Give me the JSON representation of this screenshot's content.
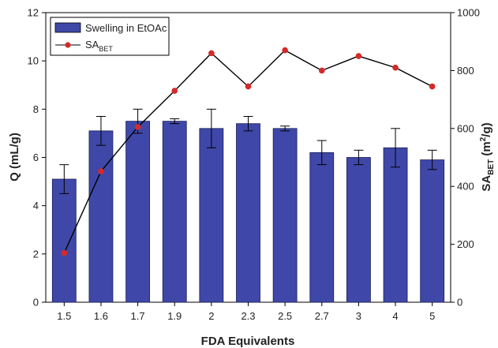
{
  "chart_data": {
    "type": "bar",
    "categories": [
      "1.5",
      "1.6",
      "1.7",
      "1.9",
      "2",
      "2.3",
      "2.5",
      "2.7",
      "3",
      "4",
      "5"
    ],
    "xlabel": "FDA Equivalents",
    "series": [
      {
        "name": "Swelling in EtOAc",
        "type": "bar",
        "axis": "left",
        "values": [
          5.1,
          7.1,
          7.5,
          7.5,
          7.2,
          7.4,
          7.2,
          6.2,
          6.0,
          6.4,
          5.9
        ],
        "errors": [
          0.6,
          0.6,
          0.5,
          0.1,
          0.8,
          0.3,
          0.1,
          0.5,
          0.3,
          0.8,
          0.4
        ],
        "color": "#3f48a8"
      },
      {
        "name_main": "SA",
        "name_sub": "BET",
        "type": "line",
        "axis": "right",
        "values": [
          170,
          452,
          605,
          730,
          860,
          745,
          870,
          800,
          850,
          810,
          745
        ],
        "color": "#d42a2a"
      }
    ],
    "y_left": {
      "label": "Q (mL/g)",
      "lim": [
        0,
        12
      ],
      "ticks": [
        "0",
        "2",
        "4",
        "6",
        "8",
        "10",
        "12"
      ]
    },
    "y_right": {
      "label_main": "SA",
      "label_sub": "BET",
      "label_unit_a": " (m",
      "label_sup": "2",
      "label_unit_b": "/g)",
      "lim": [
        0,
        1000
      ],
      "ticks": [
        "0",
        "200",
        "400",
        "600",
        "800",
        "1000"
      ]
    },
    "legend_position": "top-left",
    "grid": false
  }
}
